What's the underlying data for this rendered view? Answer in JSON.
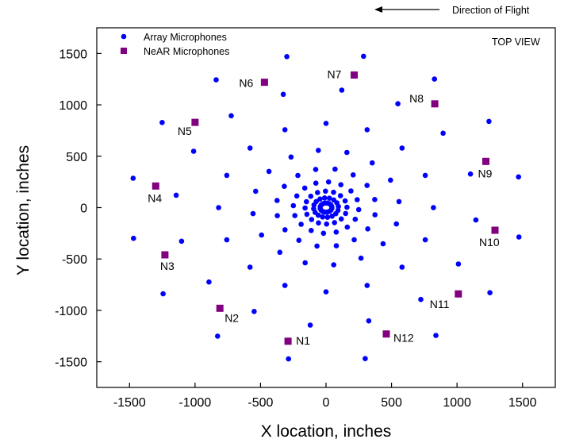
{
  "chart_data": {
    "type": "scatter",
    "xlabel": "X location, inches",
    "ylabel": "Y location, inches",
    "xlim": [
      -1750,
      1750
    ],
    "ylim": [
      -1750,
      1750
    ],
    "xticks": [
      -1500,
      -1000,
      -500,
      0,
      500,
      1000,
      1500
    ],
    "yticks": [
      -1500,
      -1000,
      -500,
      0,
      500,
      1000,
      1500
    ],
    "grid": false,
    "legend_position": "top-left",
    "annotations": {
      "top_view": "TOP VIEW",
      "direction": "Direction of Flight"
    },
    "colors": {
      "array": "#0000ff",
      "near": "#800080"
    },
    "series": [
      {
        "name": "Array Microphones",
        "marker": "circle",
        "spiral": {
          "arms": 16,
          "points_per_arm": 9,
          "radii": [
            45,
            95,
            160,
            250,
            380,
            560,
            820,
            1150,
            1500
          ],
          "start_angle_deg": 79,
          "twist_deg": [
            0,
            5,
            10,
            16,
            22,
            28,
            34,
            40,
            45
          ]
        }
      },
      {
        "name": "NeAR Microphones",
        "marker": "square",
        "points": [
          {
            "label": "N1",
            "x": -290,
            "y": -1300
          },
          {
            "label": "N2",
            "x": -810,
            "y": -980
          },
          {
            "label": "N3",
            "x": -1230,
            "y": -460
          },
          {
            "label": "N4",
            "x": -1300,
            "y": 210
          },
          {
            "label": "N5",
            "x": -1000,
            "y": 830
          },
          {
            "label": "N6",
            "x": -470,
            "y": 1220
          },
          {
            "label": "N7",
            "x": 215,
            "y": 1290
          },
          {
            "label": "N8",
            "x": 830,
            "y": 1010
          },
          {
            "label": "N9",
            "x": 1220,
            "y": 450
          },
          {
            "label": "N10",
            "x": 1290,
            "y": -220
          },
          {
            "label": "N11",
            "x": 1010,
            "y": -840
          },
          {
            "label": "N12",
            "x": 460,
            "y": -1230
          }
        ]
      }
    ]
  }
}
